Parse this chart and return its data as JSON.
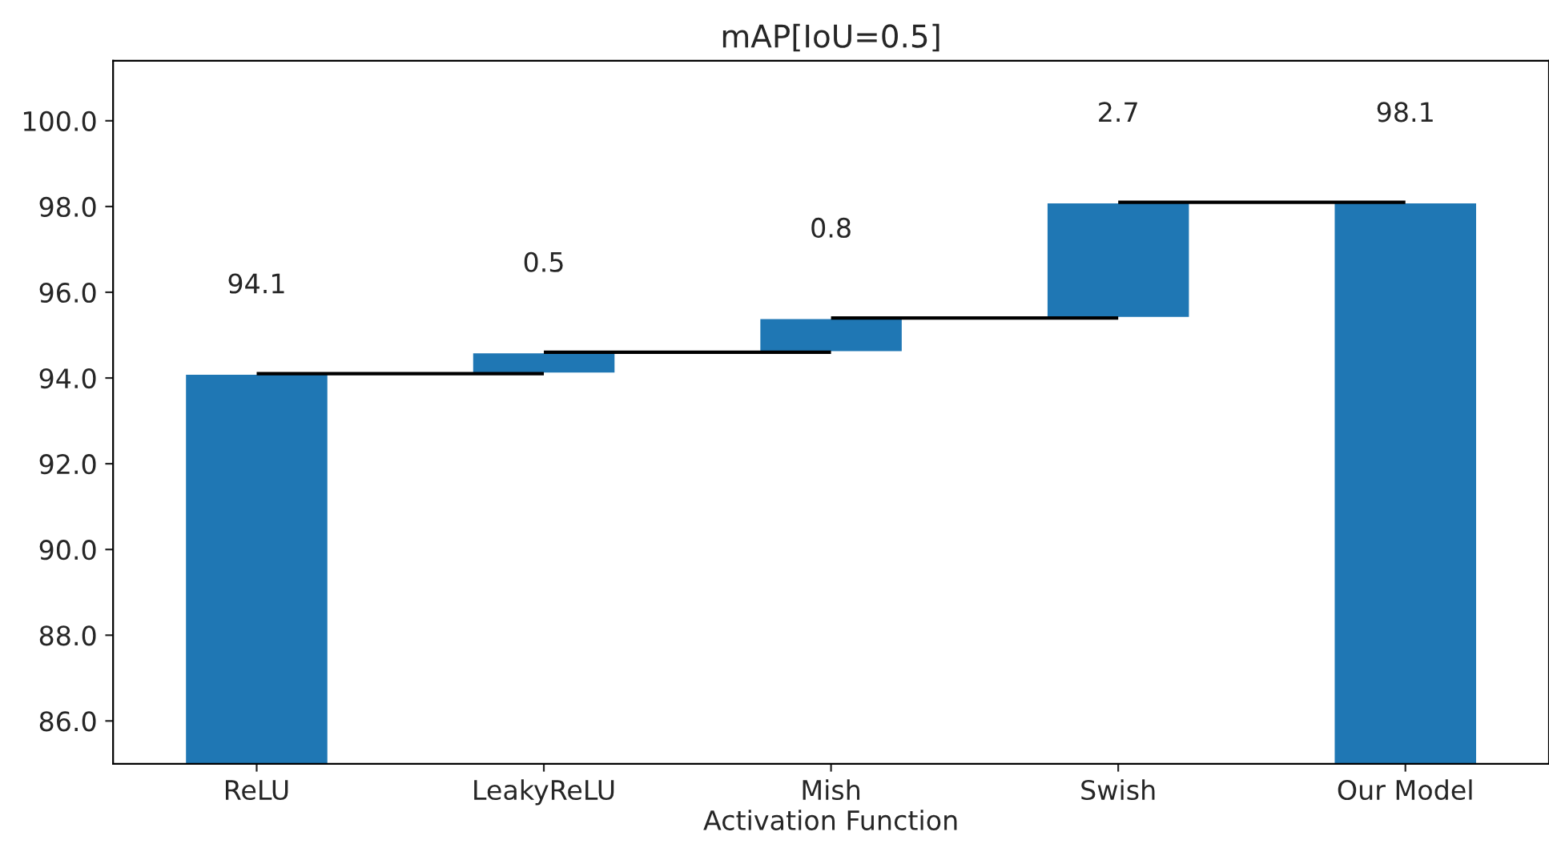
{
  "chart_data": {
    "type": "bar",
    "title": "mAP[IoU=0.5]",
    "xlabel": "Activation Function",
    "categories": [
      "ReLU",
      "LeakyReLU",
      "Mish",
      "Swish",
      "Our Model"
    ],
    "values": [
      94.1,
      0.5,
      0.8,
      2.7,
      98.1
    ],
    "base": [
      0,
      94.1,
      94.6,
      95.4,
      0
    ],
    "color": "#1f77b4",
    "ylim": [
      85,
      101.4
    ],
    "yticks": [
      {
        "value": 86,
        "label": "86.0"
      },
      {
        "value": 88,
        "label": "88.0"
      },
      {
        "value": 90,
        "label": "90.0"
      },
      {
        "value": 92,
        "label": "92.0"
      },
      {
        "value": 94,
        "label": "94.0"
      },
      {
        "value": 96,
        "label": "96.0"
      },
      {
        "value": 98,
        "label": "98.0"
      },
      {
        "value": 100,
        "label": "100.0"
      }
    ],
    "data_labels": true,
    "grid": false
  }
}
